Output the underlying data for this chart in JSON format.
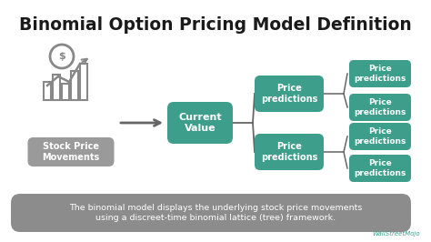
{
  "title": "Binomial Option Pricing Model Definition",
  "title_color": "#1a1a1a",
  "title_fontsize": 13.5,
  "bg_color": "#ffffff",
  "teal_color": "#3d9e8c",
  "gray_box_color": "#9a9a9a",
  "arrow_color": "#666666",
  "footer_bg": "#8c8c8c",
  "footer_text": "The binomial model displays the underlying stock price movements\nusing a discreet-time binomial lattice (tree) framework.",
  "footer_text_color": "#ffffff",
  "box_text_color": "#ffffff",
  "stock_label": "Stock Price\nMovements",
  "current_value_label": "Current\nValue",
  "price_pred_label": "Price\npredictions",
  "wallstreetmojo_color": "#3d9e8c",
  "icon_color": "#888888"
}
